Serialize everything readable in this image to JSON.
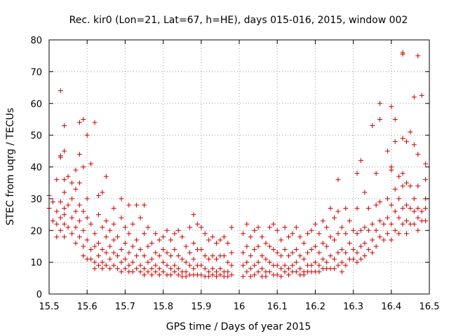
{
  "chart_data": {
    "type": "scatter",
    "title": "Rec. kir0 (Lon=21, Lat=67, h=HE), days 015-016, 2015, window 002",
    "xlabel": "GPS time / Days of year 2015",
    "ylabel": "STEC from uqrg / TECUs",
    "xlim": [
      15.5,
      16.5
    ],
    "ylim": [
      0,
      80
    ],
    "xticks": [
      "15.5",
      "15.6",
      "15.7",
      "15.8",
      "15.9",
      "16",
      "16.1",
      "16.2",
      "16.3",
      "16.4",
      "16.5"
    ],
    "yticks": [
      "0",
      "10",
      "20",
      "30",
      "40",
      "50",
      "60",
      "70",
      "80"
    ],
    "grid": true,
    "marker": "plus",
    "color": "#cc0000",
    "points": [
      [
        15.5,
        31
      ],
      [
        15.5,
        27
      ],
      [
        15.51,
        23
      ],
      [
        15.51,
        29
      ],
      [
        15.52,
        36
      ],
      [
        15.52,
        26
      ],
      [
        15.52,
        22
      ],
      [
        15.52,
        18
      ],
      [
        15.53,
        64
      ],
      [
        15.53,
        43.5
      ],
      [
        15.53,
        43
      ],
      [
        15.53,
        29
      ],
      [
        15.53,
        24
      ],
      [
        15.53,
        20
      ],
      [
        15.54,
        53
      ],
      [
        15.54,
        45
      ],
      [
        15.54,
        36
      ],
      [
        15.54,
        32
      ],
      [
        15.54,
        27
      ],
      [
        15.54,
        25
      ],
      [
        15.54,
        22
      ],
      [
        15.54,
        18
      ],
      [
        15.55,
        37
      ],
      [
        15.55,
        28
      ],
      [
        15.55,
        21
      ],
      [
        15.56,
        35
      ],
      [
        15.56,
        30
      ],
      [
        15.56,
        24
      ],
      [
        15.56,
        19
      ],
      [
        15.57,
        39
      ],
      [
        15.57,
        33
      ],
      [
        15.57,
        26
      ],
      [
        15.57,
        21
      ],
      [
        15.57,
        16
      ],
      [
        15.58,
        54
      ],
      [
        15.58,
        44
      ],
      [
        15.58,
        35
      ],
      [
        15.58,
        28
      ],
      [
        15.58,
        23
      ],
      [
        15.58,
        18
      ],
      [
        15.59,
        55
      ],
      [
        15.59,
        40
      ],
      [
        15.59,
        26
      ],
      [
        15.59,
        20
      ],
      [
        15.59,
        15
      ],
      [
        15.59,
        12
      ],
      [
        15.6,
        50
      ],
      [
        15.6,
        30
      ],
      [
        15.6,
        24
      ],
      [
        15.6,
        17
      ],
      [
        15.6,
        11
      ],
      [
        15.61,
        41
      ],
      [
        15.61,
        22
      ],
      [
        15.61,
        14
      ],
      [
        15.61,
        11
      ],
      [
        15.62,
        54
      ],
      [
        15.62,
        19
      ],
      [
        15.62,
        15
      ],
      [
        15.62,
        10
      ],
      [
        15.62,
        8
      ],
      [
        15.63,
        31
      ],
      [
        15.63,
        25
      ],
      [
        15.63,
        16
      ],
      [
        15.63,
        12
      ],
      [
        15.63,
        9
      ],
      [
        15.64,
        32
      ],
      [
        15.64,
        21
      ],
      [
        15.64,
        14
      ],
      [
        15.64,
        10
      ],
      [
        15.64,
        8
      ],
      [
        15.65,
        37
      ],
      [
        15.65,
        23
      ],
      [
        15.65,
        18
      ],
      [
        15.65,
        13
      ],
      [
        15.65,
        9
      ],
      [
        15.66,
        20
      ],
      [
        15.66,
        15
      ],
      [
        15.66,
        11
      ],
      [
        15.66,
        8
      ],
      [
        15.67,
        27
      ],
      [
        15.67,
        22
      ],
      [
        15.67,
        17
      ],
      [
        15.67,
        13
      ],
      [
        15.67,
        9
      ],
      [
        15.68,
        18
      ],
      [
        15.68,
        12
      ],
      [
        15.68,
        8
      ],
      [
        15.69,
        30
      ],
      [
        15.69,
        24
      ],
      [
        15.69,
        14
      ],
      [
        15.69,
        10
      ],
      [
        15.69,
        7
      ],
      [
        15.7,
        21
      ],
      [
        15.7,
        16
      ],
      [
        15.7,
        11
      ],
      [
        15.7,
        8
      ],
      [
        15.71,
        28
      ],
      [
        15.71,
        19
      ],
      [
        15.71,
        13
      ],
      [
        15.71,
        9
      ],
      [
        15.71,
        7
      ],
      [
        15.72,
        22
      ],
      [
        15.72,
        15
      ],
      [
        15.72,
        10
      ],
      [
        15.72,
        7
      ],
      [
        15.73,
        28
      ],
      [
        15.73,
        17
      ],
      [
        15.73,
        12
      ],
      [
        15.73,
        8
      ],
      [
        15.74,
        24
      ],
      [
        15.74,
        14
      ],
      [
        15.74,
        9
      ],
      [
        15.74,
        7
      ],
      [
        15.75,
        28
      ],
      [
        15.75,
        19
      ],
      [
        15.75,
        12
      ],
      [
        15.75,
        8
      ],
      [
        15.75,
        6
      ],
      [
        15.76,
        21
      ],
      [
        15.76,
        15
      ],
      [
        15.76,
        10
      ],
      [
        15.76,
        7
      ],
      [
        15.77,
        16
      ],
      [
        15.77,
        11
      ],
      [
        15.77,
        8
      ],
      [
        15.77,
        6
      ],
      [
        15.78,
        19
      ],
      [
        15.78,
        13
      ],
      [
        15.78,
        9
      ],
      [
        15.78,
        7
      ],
      [
        15.79,
        17
      ],
      [
        15.79,
        12
      ],
      [
        15.79,
        8
      ],
      [
        15.79,
        6
      ],
      [
        15.8,
        18
      ],
      [
        15.8,
        14
      ],
      [
        15.8,
        10
      ],
      [
        15.8,
        7
      ],
      [
        15.81,
        20
      ],
      [
        15.81,
        13
      ],
      [
        15.81,
        9
      ],
      [
        15.81,
        6
      ],
      [
        15.82,
        17
      ],
      [
        15.82,
        12
      ],
      [
        15.82,
        8
      ],
      [
        15.82,
        6
      ],
      [
        15.83,
        19
      ],
      [
        15.83,
        14
      ],
      [
        15.83,
        9
      ],
      [
        15.83,
        7
      ],
      [
        15.84,
        20
      ],
      [
        15.84,
        12
      ],
      [
        15.84,
        8
      ],
      [
        15.84,
        6
      ],
      [
        15.85,
        18
      ],
      [
        15.85,
        11
      ],
      [
        15.85,
        7
      ],
      [
        15.85,
        5.5
      ],
      [
        15.86,
        15
      ],
      [
        15.86,
        10
      ],
      [
        15.86,
        7
      ],
      [
        15.86,
        5.5
      ],
      [
        15.87,
        21
      ],
      [
        15.87,
        13
      ],
      [
        15.87,
        9
      ],
      [
        15.87,
        6
      ],
      [
        15.88,
        25
      ],
      [
        15.88,
        16
      ],
      [
        15.88,
        11
      ],
      [
        15.88,
        8
      ],
      [
        15.88,
        6
      ],
      [
        15.89,
        22
      ],
      [
        15.89,
        14
      ],
      [
        15.89,
        9
      ],
      [
        15.89,
        6
      ],
      [
        15.9,
        21
      ],
      [
        15.9,
        14
      ],
      [
        15.9,
        9
      ],
      [
        15.9,
        6
      ],
      [
        15.91,
        19
      ],
      [
        15.91,
        12
      ],
      [
        15.91,
        8
      ],
      [
        15.91,
        5.5
      ],
      [
        15.92,
        17
      ],
      [
        15.92,
        11
      ],
      [
        15.92,
        7
      ],
      [
        15.92,
        5.5
      ],
      [
        15.93,
        18
      ],
      [
        15.93,
        12
      ],
      [
        15.93,
        8
      ],
      [
        15.93,
        6
      ],
      [
        15.94,
        16
      ],
      [
        15.94,
        11
      ],
      [
        15.94,
        7
      ],
      [
        15.94,
        5.5
      ],
      [
        15.95,
        17
      ],
      [
        15.95,
        12
      ],
      [
        15.95,
        8
      ],
      [
        15.95,
        6
      ],
      [
        15.96,
        18
      ],
      [
        15.96,
        12
      ],
      [
        15.96,
        7
      ],
      [
        15.96,
        5.5
      ],
      [
        15.97,
        16
      ],
      [
        15.97,
        10
      ],
      [
        15.97,
        7
      ],
      [
        15.97,
        5.5
      ],
      [
        15.98,
        21
      ],
      [
        15.98,
        13
      ],
      [
        15.98,
        9
      ],
      [
        15.98,
        6
      ],
      [
        16.01,
        19
      ],
      [
        16.01,
        13
      ],
      [
        16.01,
        9
      ],
      [
        16.01,
        5.5
      ],
      [
        16.02,
        22
      ],
      [
        16.02,
        15
      ],
      [
        16.02,
        10
      ],
      [
        16.02,
        7
      ],
      [
        16.03,
        18
      ],
      [
        16.03,
        12
      ],
      [
        16.03,
        8
      ],
      [
        16.03,
        5.5
      ],
      [
        16.04,
        20
      ],
      [
        16.04,
        14
      ],
      [
        16.04,
        9
      ],
      [
        16.04,
        6
      ],
      [
        16.05,
        21
      ],
      [
        16.05,
        15
      ],
      [
        16.05,
        10
      ],
      [
        16.05,
        7
      ],
      [
        16.06,
        18
      ],
      [
        16.06,
        12
      ],
      [
        16.06,
        8
      ],
      [
        16.06,
        5.5
      ],
      [
        16.07,
        16
      ],
      [
        16.07,
        11
      ],
      [
        16.07,
        7
      ],
      [
        16.07,
        5.5
      ],
      [
        16.08,
        21
      ],
      [
        16.08,
        15
      ],
      [
        16.08,
        10
      ],
      [
        16.08,
        7
      ],
      [
        16.09,
        22
      ],
      [
        16.09,
        14
      ],
      [
        16.09,
        9
      ],
      [
        16.09,
        6
      ],
      [
        16.1,
        20
      ],
      [
        16.1,
        13
      ],
      [
        16.1,
        9
      ],
      [
        16.1,
        6
      ],
      [
        16.11,
        17
      ],
      [
        16.11,
        12
      ],
      [
        16.11,
        8
      ],
      [
        16.11,
        5.5
      ],
      [
        16.12,
        21
      ],
      [
        16.12,
        14
      ],
      [
        16.12,
        9
      ],
      [
        16.12,
        7
      ],
      [
        16.13,
        18
      ],
      [
        16.13,
        12
      ],
      [
        16.13,
        8
      ],
      [
        16.13,
        6
      ],
      [
        16.14,
        19
      ],
      [
        16.14,
        13
      ],
      [
        16.14,
        9
      ],
      [
        16.14,
        7
      ],
      [
        16.15,
        21
      ],
      [
        16.15,
        14
      ],
      [
        16.15,
        10
      ],
      [
        16.15,
        7
      ],
      [
        16.16,
        18
      ],
      [
        16.16,
        12
      ],
      [
        16.16,
        8
      ],
      [
        16.16,
        6
      ],
      [
        16.17,
        16
      ],
      [
        16.17,
        11
      ],
      [
        16.17,
        7
      ],
      [
        16.17,
        6
      ],
      [
        16.18,
        19
      ],
      [
        16.18,
        13
      ],
      [
        16.18,
        9
      ],
      [
        16.18,
        7
      ],
      [
        16.19,
        20
      ],
      [
        16.19,
        14
      ],
      [
        16.19,
        9
      ],
      [
        16.19,
        7
      ],
      [
        16.2,
        22
      ],
      [
        16.2,
        15
      ],
      [
        16.2,
        10
      ],
      [
        16.2,
        7
      ],
      [
        16.21,
        19
      ],
      [
        16.21,
        13
      ],
      [
        16.21,
        9
      ],
      [
        16.21,
        7
      ],
      [
        16.22,
        23
      ],
      [
        16.22,
        16
      ],
      [
        16.22,
        11
      ],
      [
        16.22,
        8
      ],
      [
        16.23,
        21
      ],
      [
        16.23,
        15
      ],
      [
        16.23,
        10
      ],
      [
        16.23,
        8
      ],
      [
        16.24,
        27
      ],
      [
        16.24,
        18
      ],
      [
        16.24,
        12
      ],
      [
        16.24,
        8
      ],
      [
        16.25,
        24
      ],
      [
        16.25,
        17
      ],
      [
        16.25,
        11
      ],
      [
        16.25,
        8
      ],
      [
        16.26,
        36
      ],
      [
        16.26,
        26
      ],
      [
        16.26,
        19
      ],
      [
        16.26,
        13
      ],
      [
        16.26,
        9
      ],
      [
        16.27,
        21
      ],
      [
        16.27,
        14
      ],
      [
        16.27,
        10
      ],
      [
        16.27,
        7
      ],
      [
        16.28,
        27
      ],
      [
        16.28,
        19
      ],
      [
        16.28,
        13
      ],
      [
        16.28,
        9
      ],
      [
        16.29,
        23
      ],
      [
        16.29,
        16
      ],
      [
        16.29,
        11
      ],
      [
        16.3,
        20
      ],
      [
        16.3,
        14
      ],
      [
        16.3,
        11
      ],
      [
        16.31,
        38
      ],
      [
        16.31,
        27
      ],
      [
        16.31,
        19
      ],
      [
        16.31,
        13
      ],
      [
        16.31,
        10
      ],
      [
        16.32,
        42
      ],
      [
        16.32,
        20
      ],
      [
        16.32,
        15
      ],
      [
        16.32,
        11
      ],
      [
        16.33,
        32
      ],
      [
        16.33,
        21
      ],
      [
        16.33,
        16
      ],
      [
        16.33,
        12
      ],
      [
        16.34,
        27
      ],
      [
        16.34,
        20
      ],
      [
        16.34,
        14
      ],
      [
        16.35,
        53
      ],
      [
        16.35,
        22
      ],
      [
        16.35,
        17
      ],
      [
        16.35,
        13
      ],
      [
        16.36,
        38
      ],
      [
        16.36,
        28
      ],
      [
        16.36,
        20
      ],
      [
        16.36,
        15
      ],
      [
        16.37,
        60
      ],
      [
        16.37,
        55
      ],
      [
        16.37,
        29
      ],
      [
        16.37,
        23
      ],
      [
        16.37,
        18
      ],
      [
        16.38,
        22
      ],
      [
        16.38,
        17
      ],
      [
        16.39,
        45
      ],
      [
        16.39,
        30
      ],
      [
        16.39,
        24
      ],
      [
        16.39,
        19
      ],
      [
        16.4,
        59
      ],
      [
        16.4,
        40
      ],
      [
        16.4,
        39
      ],
      [
        16.4,
        28
      ],
      [
        16.4,
        22
      ],
      [
        16.4,
        17
      ],
      [
        16.41,
        55
      ],
      [
        16.41,
        48
      ],
      [
        16.41,
        33
      ],
      [
        16.41,
        26
      ],
      [
        16.41,
        20
      ],
      [
        16.42,
        37
      ],
      [
        16.42,
        30
      ],
      [
        16.42,
        24
      ],
      [
        16.42,
        19
      ],
      [
        16.43,
        76
      ],
      [
        16.43,
        75.5
      ],
      [
        16.43,
        49
      ],
      [
        16.43,
        38
      ],
      [
        16.43,
        34
      ],
      [
        16.43,
        27
      ],
      [
        16.43,
        22
      ],
      [
        16.44,
        48
      ],
      [
        16.44,
        35
      ],
      [
        16.44,
        28
      ],
      [
        16.44,
        23
      ],
      [
        16.44,
        19
      ],
      [
        16.45,
        51
      ],
      [
        16.45,
        34
      ],
      [
        16.45,
        27
      ],
      [
        16.45,
        22
      ],
      [
        16.46,
        62
      ],
      [
        16.46,
        47
      ],
      [
        16.46,
        30
      ],
      [
        16.46,
        26
      ],
      [
        16.46,
        22
      ],
      [
        16.47,
        75
      ],
      [
        16.47,
        44
      ],
      [
        16.47,
        34
      ],
      [
        16.47,
        27
      ],
      [
        16.47,
        24
      ],
      [
        16.47,
        20
      ],
      [
        16.48,
        62.5
      ],
      [
        16.48,
        26
      ],
      [
        16.48,
        23
      ],
      [
        16.49,
        41
      ],
      [
        16.49,
        36
      ],
      [
        16.49,
        30
      ],
      [
        16.49,
        27
      ],
      [
        16.49,
        23
      ]
    ]
  }
}
